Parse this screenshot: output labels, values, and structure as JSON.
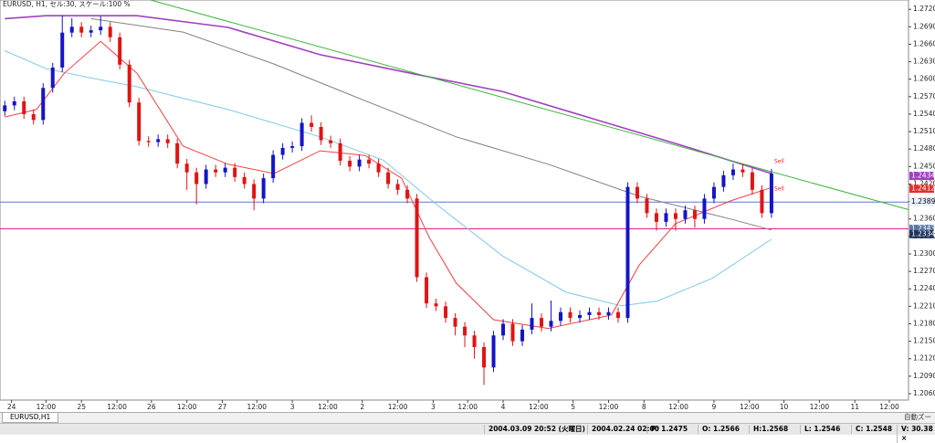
{
  "chart_data": {
    "type": "candlestick",
    "title": "EURUSD, H1, セル:30, スケール:100 %",
    "xlim": [
      -0.5,
      94.3
    ],
    "ylim": [
      1.2049,
      1.2736
    ],
    "up_color": "#1414c8",
    "down_color": "#e01414",
    "open": [
      1.2545,
      1.2555,
      1.2562,
      1.254,
      1.253,
      1.2585,
      1.262,
      1.268,
      1.269,
      1.268,
      1.2684,
      1.269,
      1.2672,
      1.2625,
      1.256,
      1.2494,
      1.2492,
      1.2497,
      1.249,
      1.2455,
      1.244,
      1.242,
      1.2445,
      1.244,
      1.2448,
      1.2432,
      1.242,
      1.2395,
      1.243,
      1.247,
      1.2482,
      1.2485,
      1.2525,
      1.2518,
      1.2495,
      1.249,
      1.246,
      1.245,
      1.2462,
      1.2455,
      1.244,
      1.242,
      1.241,
      1.2395,
      1.226,
      1.2215,
      1.221,
      1.219,
      1.2175,
      1.216,
      1.214,
      1.2105,
      1.216,
      1.218,
      1.215,
      1.217,
      1.219,
      1.2175,
      1.2185,
      1.22,
      1.219,
      1.2195,
      1.22,
      1.2195,
      1.22,
      1.219,
      1.2415,
      1.2395,
      1.237,
      1.2355,
      1.237,
      1.236,
      1.2375,
      1.236,
      1.2395,
      1.2415,
      1.2435,
      1.2445,
      1.244,
      1.241,
      1.237
    ],
    "high": [
      1.2563,
      1.257,
      1.257,
      1.2548,
      1.2593,
      1.2628,
      1.271,
      1.2705,
      1.2698,
      1.2692,
      1.2708,
      1.2698,
      1.268,
      1.2633,
      1.2568,
      1.2502,
      1.2505,
      1.2505,
      1.2498,
      1.2463,
      1.2448,
      1.2453,
      1.2453,
      1.2456,
      1.2456,
      1.244,
      1.2428,
      1.2438,
      1.2478,
      1.249,
      1.2493,
      1.2533,
      1.2538,
      1.2526,
      1.2503,
      1.2498,
      1.2468,
      1.247,
      1.247,
      1.2463,
      1.2448,
      1.2428,
      1.2418,
      1.2403,
      1.2268,
      1.2223,
      1.2218,
      1.2198,
      1.2183,
      1.2168,
      1.2148,
      1.2168,
      1.2188,
      1.2188,
      1.2178,
      1.2215,
      1.2198,
      1.222,
      1.2208,
      1.2208,
      1.2203,
      1.2208,
      1.2208,
      1.2208,
      1.2208,
      1.2423,
      1.2423,
      1.2403,
      1.2378,
      1.2378,
      1.2378,
      1.2383,
      1.2383,
      1.2403,
      1.2423,
      1.2443,
      1.2455,
      1.2455,
      1.2448,
      1.2418,
      1.2446
    ],
    "low": [
      1.2537,
      1.2547,
      1.2532,
      1.2522,
      1.2522,
      1.2577,
      1.2612,
      1.2672,
      1.2672,
      1.2672,
      1.2676,
      1.2664,
      1.2617,
      1.2552,
      1.2486,
      1.2484,
      1.2484,
      1.2482,
      1.2447,
      1.241,
      1.2385,
      1.2412,
      1.2432,
      1.2432,
      1.2424,
      1.2412,
      1.2375,
      1.2387,
      1.2422,
      1.2462,
      1.2474,
      1.2477,
      1.251,
      1.2487,
      1.2482,
      1.2452,
      1.2442,
      1.2442,
      1.2447,
      1.2432,
      1.2412,
      1.2402,
      1.2387,
      1.2252,
      1.2207,
      1.2202,
      1.2182,
      1.216,
      1.214,
      1.212,
      1.2075,
      1.2097,
      1.2152,
      1.2142,
      1.2142,
      1.2162,
      1.2167,
      1.2167,
      1.2177,
      1.2182,
      1.2182,
      1.2187,
      1.2187,
      1.2187,
      1.2182,
      1.2182,
      1.2387,
      1.2362,
      1.234,
      1.2347,
      1.234,
      1.2352,
      1.2345,
      1.2352,
      1.2387,
      1.2407,
      1.2427,
      1.2432,
      1.2402,
      1.2362,
      1.2362
    ],
    "close": [
      1.2555,
      1.2562,
      1.254,
      1.253,
      1.2585,
      1.262,
      1.268,
      1.269,
      1.268,
      1.2684,
      1.269,
      1.2672,
      1.2625,
      1.256,
      1.2494,
      1.2492,
      1.2497,
      1.249,
      1.2455,
      1.244,
      1.242,
      1.2445,
      1.244,
      1.2448,
      1.2432,
      1.242,
      1.2395,
      1.243,
      1.247,
      1.2482,
      1.2485,
      1.2525,
      1.2518,
      1.2495,
      1.249,
      1.246,
      1.245,
      1.2462,
      1.2455,
      1.244,
      1.242,
      1.241,
      1.2395,
      1.226,
      1.2215,
      1.221,
      1.219,
      1.2175,
      1.216,
      1.214,
      1.2105,
      1.216,
      1.218,
      1.215,
      1.217,
      1.219,
      1.2175,
      1.2185,
      1.22,
      1.219,
      1.2195,
      1.22,
      1.2195,
      1.22,
      1.219,
      1.2415,
      1.2395,
      1.237,
      1.2355,
      1.237,
      1.236,
      1.2375,
      1.236,
      1.2395,
      1.2415,
      1.2435,
      1.2445,
      1.244,
      1.241,
      1.237,
      1.2438
    ],
    "lines": [
      {
        "color": "#a040c0",
        "x": [
          0,
          4.3,
          13.8,
          23.3,
          32.9,
          42.4,
          51.9,
          61.4,
          70.9,
          80
        ],
        "values": [
          1.2704,
          1.2709,
          1.2709,
          1.2689,
          1.2642,
          1.261,
          1.2579,
          1.2532,
          1.2485,
          1.2438
        ]
      },
      {
        "color": "#808080",
        "x": [
          9,
          18.6,
          28.1,
          37.6,
          47.1,
          56.7,
          66.2,
          75.7,
          80
        ],
        "values": [
          1.2704,
          1.2681,
          1.2626,
          1.2563,
          1.2501,
          1.2454,
          1.2399,
          1.236,
          1.2341
        ]
      },
      {
        "color": "#7ec8e8",
        "x": [
          0,
          4.3,
          9,
          13.8,
          23.3,
          32.9,
          39.5,
          45.2,
          51.9,
          58.6,
          64.3,
          68.1,
          73.8,
          80
        ],
        "values": [
          1.2649,
          1.2618,
          1.2602,
          1.2587,
          1.2548,
          1.2501,
          1.2461,
          1.2383,
          1.2297,
          1.2234,
          1.2211,
          1.2219,
          1.2258,
          1.2325
        ]
      },
      {
        "color": "#f04040",
        "x": [
          0,
          3.3,
          6.2,
          10,
          13.8,
          18.6,
          23.3,
          28.1,
          32.9,
          37.6,
          41.4,
          44.3,
          47.1,
          51,
          56.7,
          63.3,
          66.2,
          70,
          75.7,
          80
        ],
        "values": [
          1.2535,
          1.2548,
          1.261,
          1.2665,
          1.261,
          1.2485,
          1.2454,
          1.2438,
          1.2477,
          1.2469,
          1.243,
          1.2328,
          1.225,
          1.2187,
          1.2172,
          1.2195,
          1.2281,
          1.2352,
          1.2391,
          1.2414
        ]
      },
      {
        "color": "#3cb43c",
        "x": [
          15.2,
          94.3
        ],
        "values": [
          1.2736,
          1.2376
        ]
      }
    ],
    "markers": [
      {
        "value": 1.2434,
        "color": "#a040c0",
        "line_color": null
      },
      {
        "value": 1.2412,
        "color": "#e03030",
        "line_color": null
      },
      {
        "value": 1.2389,
        "color": "#e8f0ff",
        "line_color": "#5878c8"
      },
      {
        "value": 1.2343,
        "color": "#5a78a8",
        "line_color": "#e0208a"
      },
      {
        "value": 1.2334,
        "color": "#23355a",
        "line_color": null
      }
    ],
    "yticks": [
      {
        "value": 1.272,
        "label": "1.2720"
      },
      {
        "value": 1.269,
        "label": "1.2690"
      },
      {
        "value": 1.266,
        "label": "1.2660"
      },
      {
        "value": 1.263,
        "label": "1.2630"
      },
      {
        "value": 1.26,
        "label": "1.2600"
      },
      {
        "value": 1.257,
        "label": "1.2570"
      },
      {
        "value": 1.254,
        "label": "1.2540"
      },
      {
        "value": 1.251,
        "label": "1.2510"
      },
      {
        "value": 1.248,
        "label": "1.2480"
      },
      {
        "value": 1.245,
        "label": "1.2450"
      },
      {
        "value": 1.242,
        "label": "1.2420"
      },
      {
        "value": 1.239,
        "label": "1.2390"
      },
      {
        "value": 1.236,
        "label": "1.2360"
      },
      {
        "value": 1.233,
        "label": "1.2330"
      },
      {
        "value": 1.23,
        "label": "1.2300"
      },
      {
        "value": 1.227,
        "label": "1.2270"
      },
      {
        "value": 1.224,
        "label": "1.2240"
      },
      {
        "value": 1.221,
        "label": "1.2210"
      },
      {
        "value": 1.218,
        "label": "1.2180"
      },
      {
        "value": 1.215,
        "label": "1.2150"
      },
      {
        "value": 1.212,
        "label": "1.2120"
      },
      {
        "value": 1.209,
        "label": "1.2090"
      },
      {
        "value": 1.206,
        "label": "1.2060"
      }
    ],
    "xticks": [
      {
        "value": 0.7,
        "label": "24"
      },
      {
        "value": 4.3,
        "label": "12:00"
      },
      {
        "value": 8.0,
        "label": "25"
      },
      {
        "value": 11.7,
        "label": "12:00"
      },
      {
        "value": 15.3,
        "label": "26"
      },
      {
        "value": 19.0,
        "label": "12:00"
      },
      {
        "value": 22.7,
        "label": "27"
      },
      {
        "value": 26.3,
        "label": "12:00"
      },
      {
        "value": 30.0,
        "label": "3"
      },
      {
        "value": 33.7,
        "label": "12:00"
      },
      {
        "value": 37.3,
        "label": "2"
      },
      {
        "value": 41.0,
        "label": "12:00"
      },
      {
        "value": 44.7,
        "label": "3"
      },
      {
        "value": 48.3,
        "label": "12:00"
      },
      {
        "value": 52.0,
        "label": "4"
      },
      {
        "value": 55.7,
        "label": "12:00"
      },
      {
        "value": 59.3,
        "label": "5"
      },
      {
        "value": 63.0,
        "label": "12:00"
      },
      {
        "value": 66.7,
        "label": "8"
      },
      {
        "value": 70.3,
        "label": "12:00"
      },
      {
        "value": 74.0,
        "label": "9"
      },
      {
        "value": 77.7,
        "label": "12:00"
      },
      {
        "value": 81.3,
        "label": "10"
      },
      {
        "value": 85.0,
        "label": "12:00"
      },
      {
        "value": 88.7,
        "label": "11"
      },
      {
        "value": 92.3,
        "label": "12:00"
      }
    ],
    "annotations": [
      "Sell",
      "Sell"
    ]
  },
  "tab": "EURUSD,H1",
  "zoom_button": "自動ズー",
  "status_bar": [
    "2004.03.09 20:52 (火曜日)",
    "2004.02.24 02:00",
    "P: 1.2475",
    "O: 1.2566",
    "H:1.2568",
    "L: 1.2546",
    "C: 1.2548",
    "V: 30.38 ×"
  ]
}
